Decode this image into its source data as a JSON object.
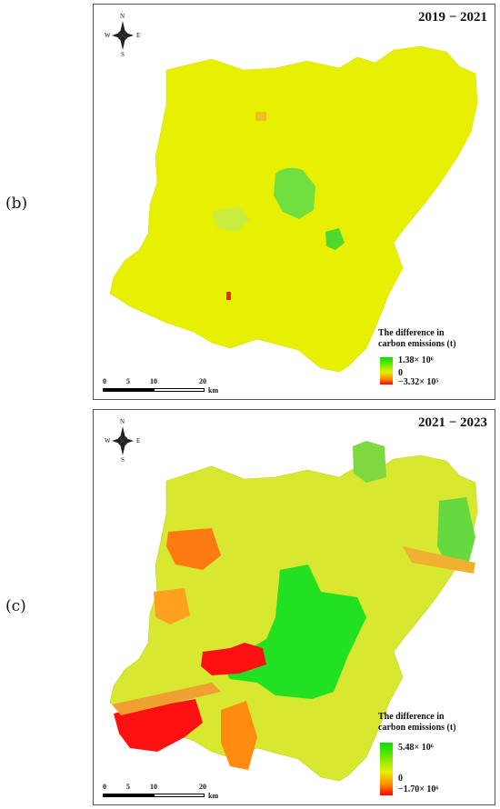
{
  "panels": [
    {
      "label": "(b)",
      "period": "2019 − 2021",
      "compass": {
        "n": "N",
        "s": "S",
        "e": "E",
        "w": "W"
      },
      "legend": {
        "title_line1": "The difference in",
        "title_line2": "carbon emissions (t)",
        "max": "1.38× 10⁶",
        "zero": "0",
        "min": "−3.32× 10⁵"
      },
      "scale": {
        "t0": "0",
        "t1": "5",
        "t2": "10",
        "t3": "20",
        "unit": "km"
      }
    },
    {
      "label": "(c)",
      "period": "2021 − 2023",
      "compass": {
        "n": "N",
        "s": "S",
        "e": "E",
        "w": "W"
      },
      "legend": {
        "title_line1": "The difference in",
        "title_line2": "carbon emissions (t)",
        "max": "5.48× 10⁶",
        "zero": "0",
        "min": "−1.70× 10⁶"
      },
      "scale": {
        "t0": "0",
        "t1": "5",
        "t2": "10",
        "t3": "20",
        "unit": "km"
      }
    }
  ],
  "colors": {
    "increase": "#00e000",
    "neutral": "#e8f000",
    "moderate_decrease": "#ff8800",
    "strong_decrease": "#ff0000"
  }
}
